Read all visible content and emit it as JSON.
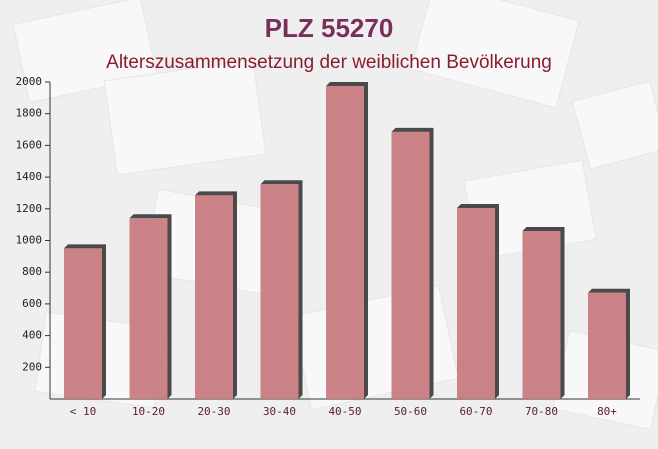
{
  "chart_data": {
    "type": "bar",
    "title": "PLZ 55270",
    "subtitle": "Alterszusammensetzung der weiblichen Bevölkerung",
    "categories": [
      "< 10",
      "10-20",
      "20-30",
      "30-40",
      "40-50",
      "50-60",
      "60-70",
      "70-80",
      "80+"
    ],
    "values": [
      950,
      1140,
      1285,
      1355,
      1975,
      1685,
      1205,
      1060,
      670
    ],
    "color": "#c7787e",
    "ylim": [
      0,
      2000
    ],
    "yticks": [
      200,
      400,
      600,
      800,
      1000,
      1200,
      1400,
      1600,
      1800,
      2000
    ]
  }
}
